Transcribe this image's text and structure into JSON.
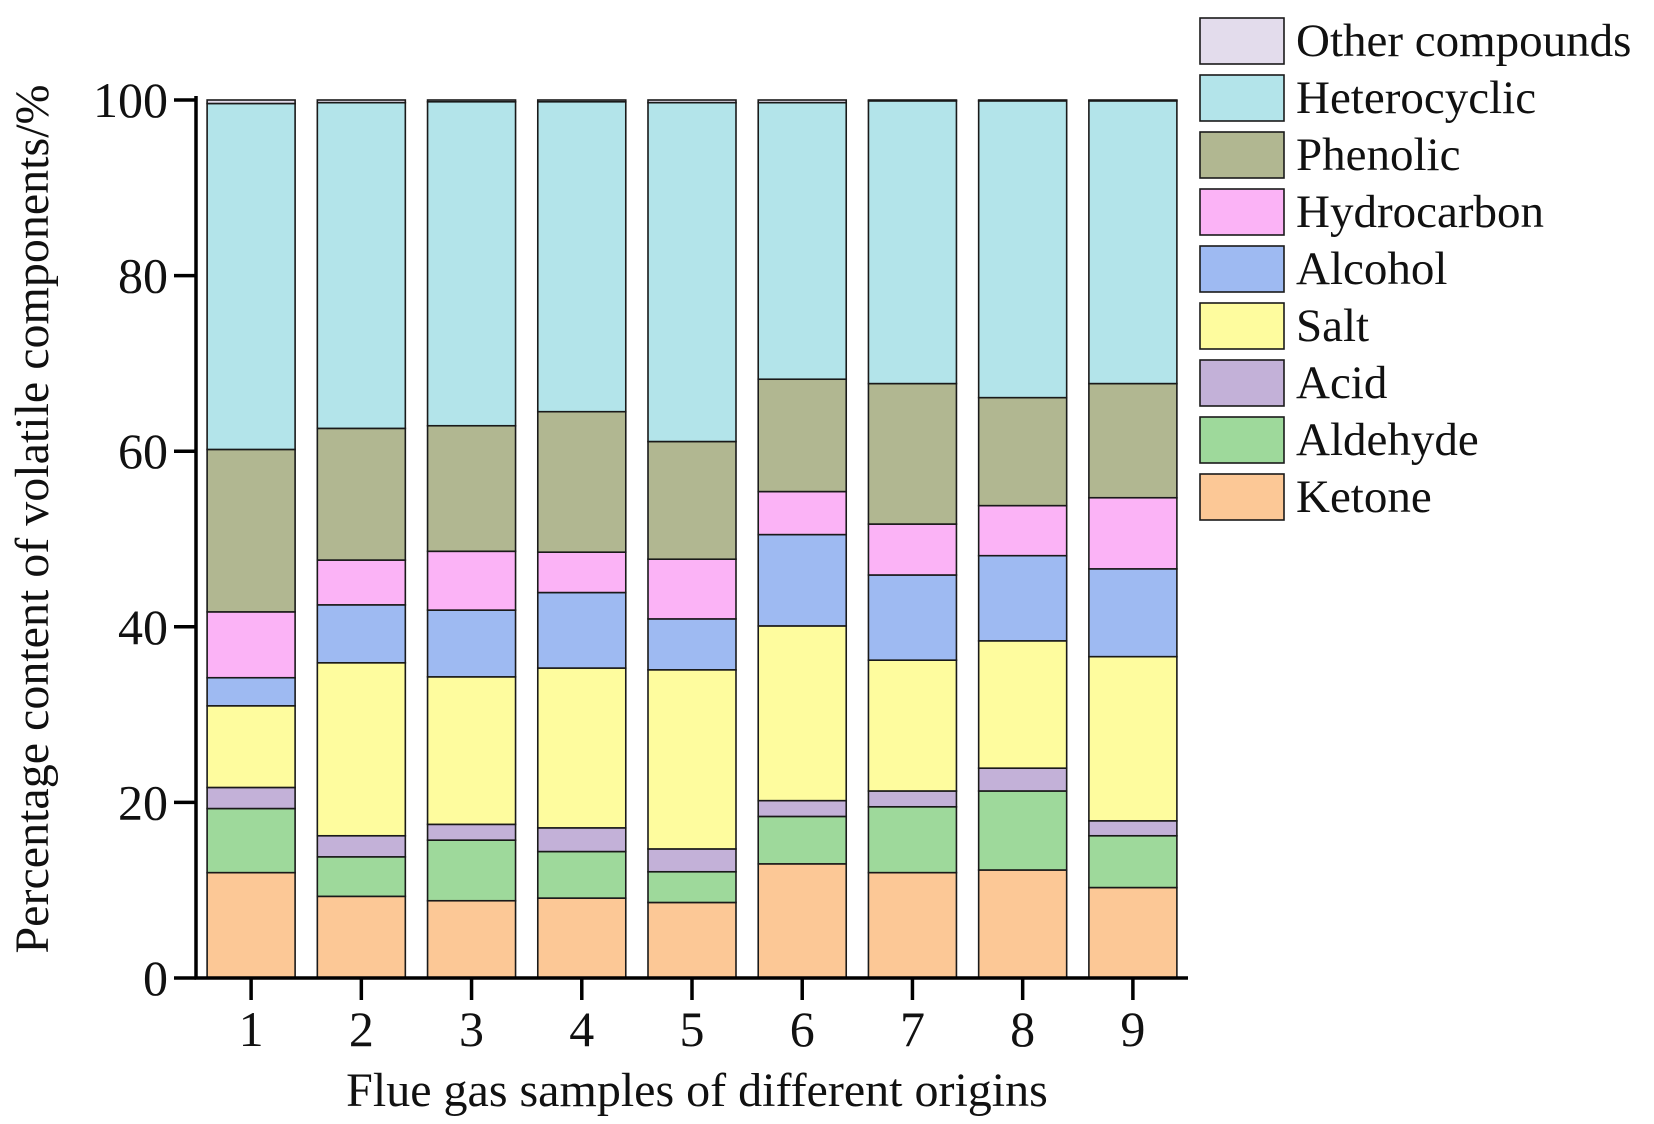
{
  "chart_data": {
    "type": "bar",
    "stacked": true,
    "xlabel": "Flue gas samples of different origins",
    "ylabel": "Percentage content of volatile components/%",
    "ylim": [
      0,
      100
    ],
    "yticks": [
      0,
      20,
      40,
      60,
      80,
      100
    ],
    "categories": [
      "1",
      "2",
      "3",
      "4",
      "5",
      "6",
      "7",
      "8",
      "9"
    ],
    "legend_position": "right",
    "series": [
      {
        "name": "Ketone",
        "color": "#fcc896",
        "values": [
          12.0,
          9.3,
          8.8,
          9.1,
          8.6,
          13.0,
          12.0,
          12.3,
          10.3
        ]
      },
      {
        "name": "Aldehyde",
        "color": "#9ed99b",
        "values": [
          7.3,
          4.5,
          6.9,
          5.3,
          3.5,
          5.4,
          7.5,
          9.0,
          5.9
        ]
      },
      {
        "name": "Acid",
        "color": "#c3b1d8",
        "values": [
          2.4,
          2.4,
          1.8,
          2.7,
          2.6,
          1.8,
          1.8,
          2.6,
          1.7
        ]
      },
      {
        "name": "Salt",
        "color": "#fefc9e",
        "values": [
          9.3,
          19.7,
          16.8,
          18.2,
          20.4,
          19.9,
          14.9,
          14.5,
          18.7
        ]
      },
      {
        "name": "Alcohol",
        "color": "#9ebaf2",
        "values": [
          3.2,
          6.6,
          7.6,
          8.6,
          5.8,
          10.4,
          9.7,
          9.7,
          10.0
        ]
      },
      {
        "name": "Hydrocarbon",
        "color": "#fbb3f6",
        "values": [
          7.5,
          5.1,
          6.7,
          4.6,
          6.8,
          4.9,
          5.8,
          5.7,
          8.1
        ]
      },
      {
        "name": "Phenolic",
        "color": "#b1b791",
        "values": [
          18.5,
          15.0,
          14.3,
          16.0,
          13.4,
          12.8,
          16.0,
          12.3,
          13.0
        ]
      },
      {
        "name": "Heterocyclic",
        "color": "#b3e4ea",
        "values": [
          39.4,
          37.1,
          36.9,
          35.3,
          38.6,
          31.5,
          32.2,
          33.8,
          32.2
        ]
      },
      {
        "name": "Other compounds",
        "color": "#e3dcec",
        "values": [
          0.4,
          0.3,
          0.2,
          0.2,
          0.3,
          0.3,
          0.1,
          0.1,
          0.1
        ]
      }
    ]
  }
}
